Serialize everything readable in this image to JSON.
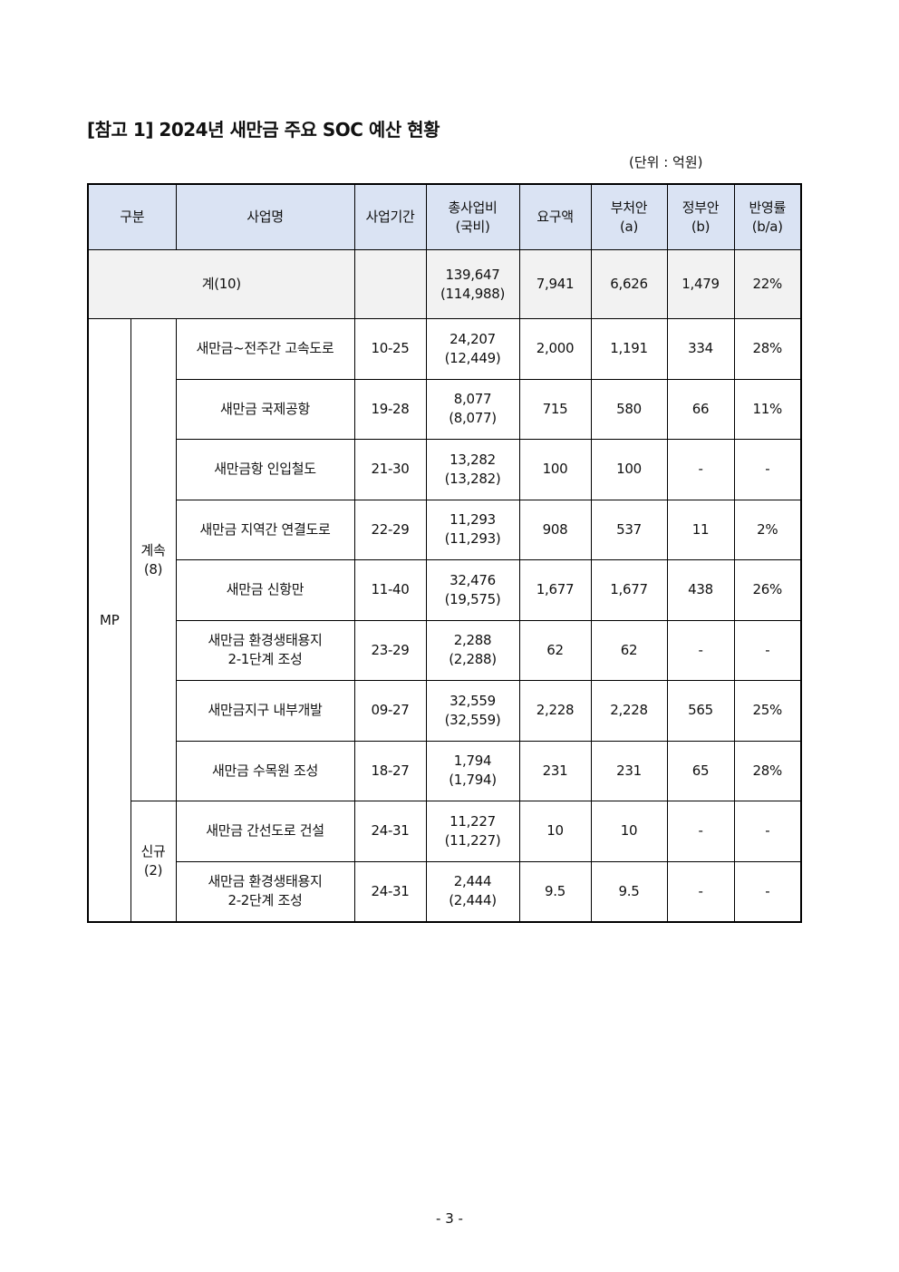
{
  "title": "[참고 1] 2024년 새만금 주요 SOC 예산 현황",
  "unit": "(단위 : 억원)",
  "header": {
    "category": "구분",
    "project": "사업명",
    "period": "사업기간",
    "total_cost": [
      "총사업비",
      "(국비)"
    ],
    "request": "요구액",
    "ministry": [
      "부처안",
      "(a)"
    ],
    "government": [
      "정부안",
      "(b)"
    ],
    "ratio": [
      "반영률",
      "(b/a)"
    ]
  },
  "total_row": {
    "label": "계(10)",
    "period": "",
    "total_cost": [
      "139,647",
      "(114,988)"
    ],
    "request": "7,941",
    "ministry": "6,626",
    "government": "1,479",
    "ratio": "22%"
  },
  "group": "MP",
  "subgroups": [
    {
      "label": [
        "계속",
        "(8)"
      ],
      "rows": [
        {
          "name": [
            "새만금~전주간 고속도로"
          ],
          "period": "10-25",
          "total_cost": [
            "24,207",
            "(12,449)"
          ],
          "request": "2,000",
          "ministry": "1,191",
          "government": "334",
          "ratio": "28%"
        },
        {
          "name": [
            "새만금 국제공항"
          ],
          "period": "19-28",
          "total_cost": [
            "8,077",
            "(8,077)"
          ],
          "request": "715",
          "ministry": "580",
          "government": "66",
          "ratio": "11%"
        },
        {
          "name": [
            "새만금항 인입철도"
          ],
          "period": "21-30",
          "total_cost": [
            "13,282",
            "(13,282)"
          ],
          "request": "100",
          "ministry": "100",
          "government": "-",
          "ratio": "-"
        },
        {
          "name": [
            "새만금 지역간 연결도로"
          ],
          "period": "22-29",
          "total_cost": [
            "11,293",
            "(11,293)"
          ],
          "request": "908",
          "ministry": "537",
          "government": "11",
          "ratio": "2%"
        },
        {
          "name": [
            "새만금 신항만"
          ],
          "period": "11-40",
          "total_cost": [
            "32,476",
            "(19,575)"
          ],
          "request": "1,677",
          "ministry": "1,677",
          "government": "438",
          "ratio": "26%"
        },
        {
          "name": [
            "새만금 환경생태용지",
            "2-1단계 조성"
          ],
          "period": "23-29",
          "total_cost": [
            "2,288",
            "(2,288)"
          ],
          "request": "62",
          "ministry": "62",
          "government": "-",
          "ratio": "-"
        },
        {
          "name": [
            "새만금지구 내부개발"
          ],
          "period": "09-27",
          "total_cost": [
            "32,559",
            "(32,559)"
          ],
          "request": "2,228",
          "ministry": "2,228",
          "government": "565",
          "ratio": "25%"
        },
        {
          "name": [
            "새만금 수목원 조성"
          ],
          "period": "18-27",
          "total_cost": [
            "1,794",
            "(1,794)"
          ],
          "request": "231",
          "ministry": "231",
          "government": "65",
          "ratio": "28%"
        }
      ]
    },
    {
      "label": [
        "신규",
        "(2)"
      ],
      "rows": [
        {
          "name": [
            "새만금 간선도로 건설"
          ],
          "period": "24-31",
          "total_cost": [
            "11,227",
            "(11,227)"
          ],
          "request": "10",
          "ministry": "10",
          "government": "-",
          "ratio": "-"
        },
        {
          "name": [
            "새만금 환경생태용지",
            "2-2단계 조성"
          ],
          "period": "24-31",
          "total_cost": [
            "2,444",
            "(2,444)"
          ],
          "request": "9.5",
          "ministry": "9.5",
          "government": "-",
          "ratio": "-"
        }
      ]
    }
  ],
  "page_number": "- 3 -"
}
